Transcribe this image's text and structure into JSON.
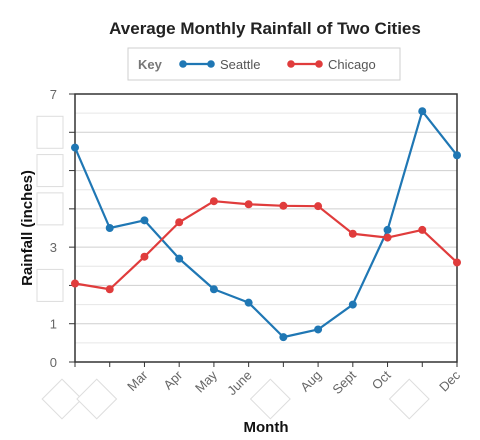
{
  "chart_data": {
    "type": "line",
    "title": "Average Monthly Rainfall of Two Cities",
    "xlabel": "Month",
    "ylabel": "Rainfall (inches)",
    "ylim": [
      0,
      7
    ],
    "legend": {
      "key_label": "Key",
      "placement": "top-center"
    },
    "categories": [
      "",
      "",
      "Mar",
      "Apr",
      "May",
      "June",
      "",
      "Aug",
      "Sept",
      "Oct",
      "",
      "Dec"
    ],
    "y_ticks": [
      {
        "value": 0,
        "label": "0"
      },
      {
        "value": 1,
        "label": "1"
      },
      {
        "value": 2,
        "label": ""
      },
      {
        "value": 3,
        "label": "3"
      },
      {
        "value": 4,
        "label": ""
      },
      {
        "value": 5,
        "label": ""
      },
      {
        "value": 6,
        "label": ""
      },
      {
        "value": 7,
        "label": "7"
      }
    ],
    "grid": true,
    "series": [
      {
        "name": "Seattle",
        "color": "#1f77b4",
        "values": [
          5.6,
          3.5,
          3.7,
          2.7,
          1.9,
          1.55,
          0.65,
          0.85,
          1.5,
          3.45,
          6.55,
          5.4
        ]
      },
      {
        "name": "Chicago",
        "color": "#e03c3c",
        "values": [
          2.05,
          1.9,
          2.75,
          3.65,
          4.2,
          4.12,
          4.08,
          4.07,
          3.35,
          3.25,
          3.45,
          2.6
        ]
      }
    ]
  }
}
